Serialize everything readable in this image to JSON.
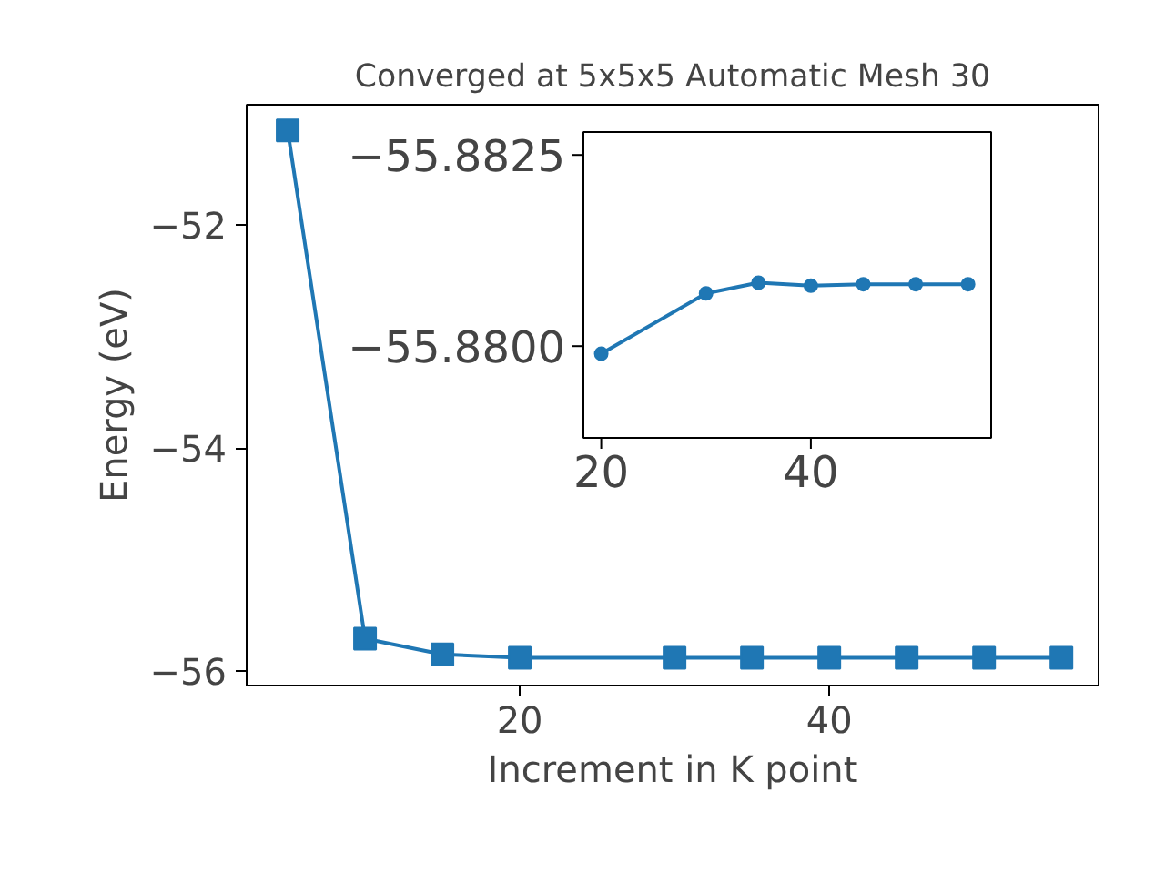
{
  "chart_data": [
    {
      "type": "line",
      "title": "Converged at 5x5x5 Automatic Mesh 30",
      "xlabel": "Increment in K point",
      "ylabel": "Energy (eV)",
      "marker": "square",
      "line_style": "solid",
      "grid": false,
      "x": [
        5,
        10,
        15,
        20,
        30,
        35,
        40,
        45,
        50,
        55
      ],
      "series": [
        {
          "color": "#1f77b4",
          "values": [
            -51.15,
            -55.71,
            -55.85,
            -55.88,
            -55.88,
            -55.88,
            -55.88,
            -55.88,
            -55.88,
            -55.88
          ]
        }
      ],
      "xlim": [
        2.35,
        57.4
      ],
      "ylim": [
        -56.13,
        -50.92
      ],
      "xticks": [
        20,
        40
      ],
      "yticks": [
        {
          "value": -56,
          "label": "−56"
        },
        {
          "value": -54,
          "label": "−54"
        },
        {
          "value": -52,
          "label": "−52"
        }
      ]
    },
    {
      "type": "line",
      "marker": "circle",
      "line_style": "solid",
      "grid": false,
      "x": [
        20,
        30,
        35,
        40,
        45,
        50,
        55
      ],
      "series": [
        {
          "color": "#1f77b4",
          "values": [
            -55.8799,
            -55.88069,
            -55.88083,
            -55.88079,
            -55.88081,
            -55.88081,
            -55.88081
          ]
        }
      ],
      "xlim": [
        18.3,
        57.2
      ],
      "ylim": [
        -55.8788,
        -55.8828
      ],
      "xticks": [
        20,
        40
      ],
      "yticks": [
        {
          "value": -55.8825,
          "label": "−55.8825"
        },
        {
          "value": -55.88,
          "label": "−55.8800"
        }
      ]
    }
  ]
}
